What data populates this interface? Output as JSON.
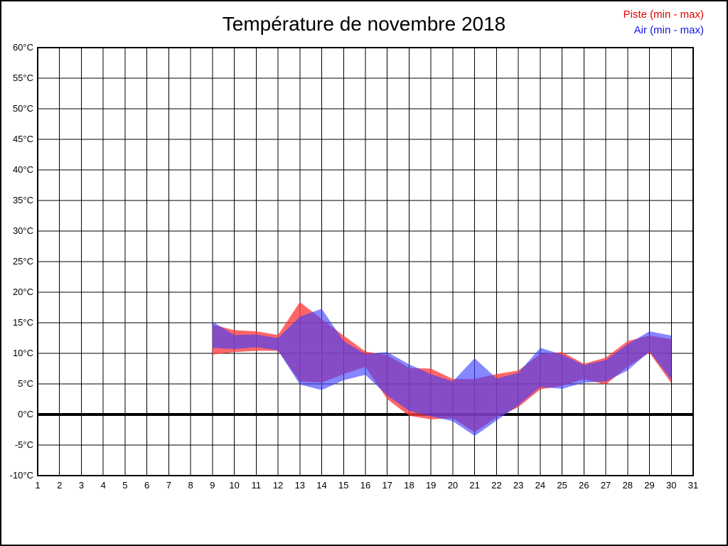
{
  "page": {
    "background": "#ffffff",
    "frame_color": "#000000"
  },
  "header": {
    "title": "Température de novembre 2018"
  },
  "legend": {
    "position": "top-right",
    "items": [
      {
        "label": "Piste (min - max)",
        "color": "#e60000"
      },
      {
        "label": "Air (min - max)",
        "color": "#1414e6"
      }
    ]
  },
  "axes": {
    "y_ticks": [
      "60°C",
      "55°C",
      "50°C",
      "45°C",
      "40°C",
      "35°C",
      "30°C",
      "25°C",
      "20°C",
      "15°C",
      "10°C",
      "5°C",
      "0°C",
      "-5°C",
      "-10°C"
    ],
    "x_ticks": [
      "1",
      "2",
      "3",
      "4",
      "5",
      "6",
      "7",
      "8",
      "9",
      "10",
      "11",
      "12",
      "13",
      "14",
      "15",
      "16",
      "17",
      "18",
      "19",
      "20",
      "21",
      "22",
      "23",
      "24",
      "25",
      "26",
      "27",
      "28",
      "29",
      "30",
      "31"
    ]
  },
  "chart_data": {
    "type": "area",
    "subtype": "min-max-range-bands",
    "title": "Température de novembre 2018",
    "xlabel": "",
    "ylabel": "",
    "xlim": [
      1,
      31
    ],
    "ylim": [
      -10,
      60
    ],
    "y_tick_step": 5,
    "grid": true,
    "zero_line_bold": true,
    "legend_position": "top-right",
    "grid_color": "#000000",
    "series": [
      {
        "name": "Piste (min - max)",
        "legend_color": "#e60000",
        "fill": "rgba(255,60,60,0.78)",
        "days": [
          9,
          10,
          11,
          12,
          13,
          14,
          15,
          16,
          17,
          18,
          19,
          20,
          21,
          22,
          23,
          24,
          25,
          26,
          27,
          28,
          29,
          30
        ],
        "min": [
          9.8,
          10.2,
          10.4,
          10.4,
          5.4,
          5.2,
          6.6,
          7.8,
          2.5,
          -0.2,
          -0.8,
          -0.6,
          -2.9,
          -0.5,
          1.2,
          4.1,
          4.7,
          5.8,
          4.9,
          7.8,
          10.1,
          5.1
        ],
        "max": [
          14.7,
          13.8,
          13.6,
          13.0,
          18.4,
          15.6,
          12.9,
          10.3,
          9.7,
          7.6,
          7.5,
          5.8,
          5.8,
          6.6,
          7.2,
          9.9,
          10.2,
          8.3,
          9.3,
          12.0,
          12.9,
          12.3
        ]
      },
      {
        "name": "Air (min - max)",
        "legend_color": "#1414e6",
        "fill": "rgba(60,60,255,0.62)",
        "days": [
          9,
          10,
          11,
          12,
          13,
          14,
          15,
          16,
          17,
          18,
          19,
          20,
          21,
          22,
          23,
          24,
          25,
          26,
          27,
          28,
          29,
          30
        ],
        "min": [
          10.9,
          10.7,
          11.0,
          10.5,
          4.9,
          4.0,
          5.6,
          6.5,
          3.1,
          0.6,
          -0.3,
          -1.1,
          -3.5,
          -1.0,
          1.5,
          4.5,
          4.2,
          5.2,
          5.4,
          7.2,
          10.3,
          5.7
        ],
        "max": [
          15.2,
          13.0,
          13.1,
          12.5,
          16.0,
          17.3,
          12.0,
          9.9,
          10.2,
          8.2,
          6.6,
          5.4,
          9.2,
          5.9,
          6.8,
          10.9,
          9.8,
          8.1,
          8.9,
          11.5,
          13.6,
          12.9
        ]
      }
    ]
  }
}
